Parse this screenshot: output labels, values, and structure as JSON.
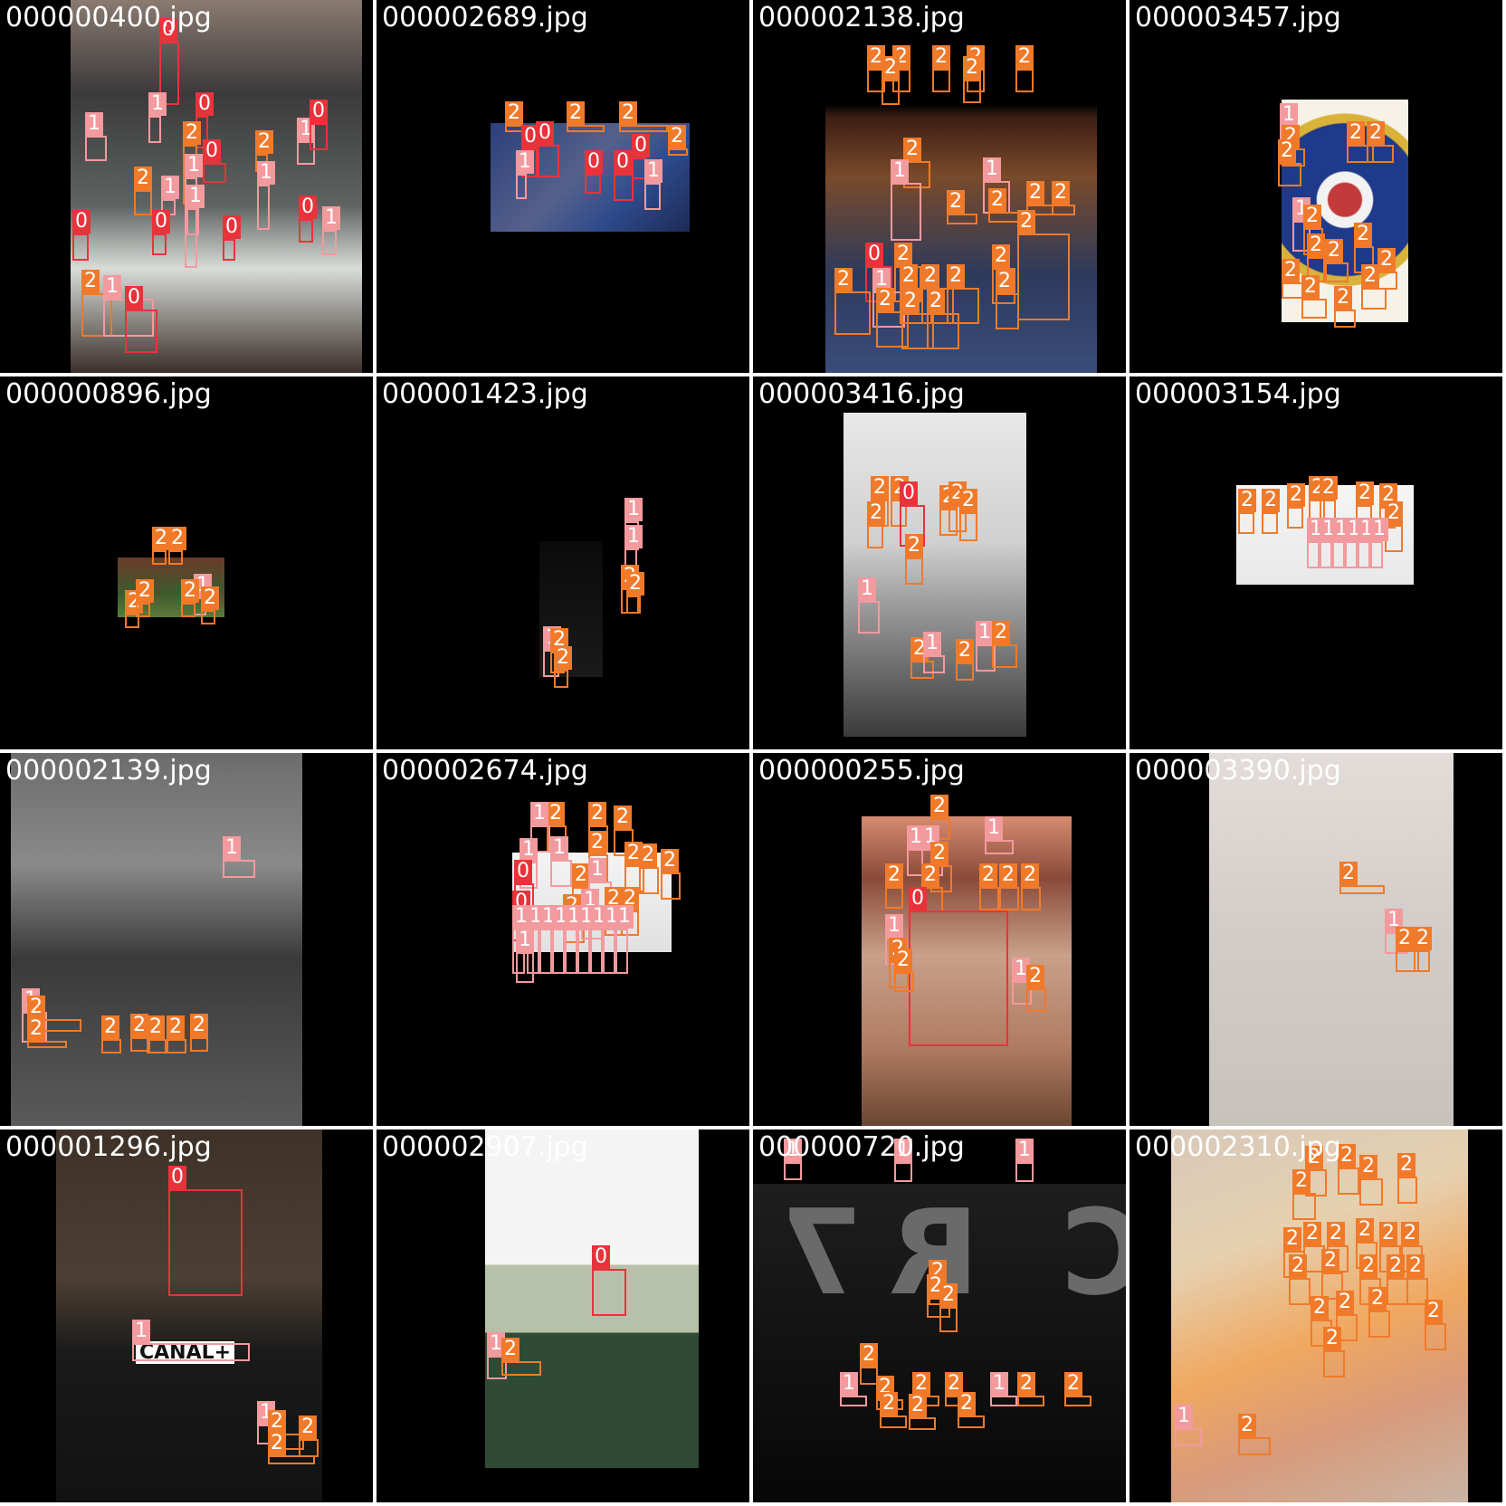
{
  "class_colors": {
    "0": "#e8333b",
    "1": "#f39a9e",
    "2": "#f07a2a"
  },
  "tiles": [
    {
      "filename": "000000400.jpg",
      "label_values": [
        "0",
        "1",
        "1",
        "0",
        "0",
        "2",
        "1",
        "2",
        "1",
        "2",
        "1",
        "1",
        "1",
        "0",
        "0",
        "0",
        "0",
        "0",
        "1",
        "2",
        "1",
        "0"
      ]
    },
    {
      "filename": "000002689.jpg",
      "label_values": [
        "2",
        "2",
        "2",
        "2",
        "0",
        "0",
        "1",
        "0",
        "0",
        "0",
        "1"
      ]
    },
    {
      "filename": "000002138.jpg",
      "label_values": [
        "2",
        "2",
        "2",
        "2",
        "2",
        "2",
        "2",
        "2",
        "1",
        "1",
        "2",
        "2",
        "2",
        "2",
        "2",
        "0",
        "2",
        "2",
        "1",
        "2",
        "2",
        "2",
        "2",
        "2",
        "2",
        "2",
        "2"
      ]
    },
    {
      "filename": "000003457.jpg",
      "label_values": [
        "1",
        "2",
        "2",
        "2",
        "2",
        "1",
        "2",
        "2",
        "2",
        "2",
        "2",
        "2",
        "2",
        "2",
        "2"
      ]
    },
    {
      "filename": "000000896.jpg",
      "label_values": [
        "2",
        "2",
        "2",
        "2",
        "1",
        "2",
        "2"
      ]
    },
    {
      "filename": "000001423.jpg",
      "label_values": [
        "1",
        "1",
        "2",
        "2",
        "1",
        "2",
        "2"
      ]
    },
    {
      "filename": "000003416.jpg",
      "label_values": [
        "2",
        "2",
        "0",
        "2",
        "2",
        "2",
        "2",
        "2",
        "1",
        "2",
        "1",
        "2",
        "1",
        "2"
      ]
    },
    {
      "filename": "000003154.jpg",
      "label_values": [
        "2",
        "2",
        "2",
        "2",
        "2",
        "2",
        "2",
        "2",
        "1",
        "1",
        "1",
        "1",
        "1",
        "1"
      ]
    },
    {
      "filename": "000002139.jpg",
      "label_values": [
        "1",
        "1",
        "2",
        "2",
        "2",
        "2",
        "2",
        "2",
        "2"
      ]
    },
    {
      "filename": "000002674.jpg",
      "label_values": [
        "2",
        "2",
        "2",
        "2",
        "2",
        "1",
        "0",
        "1",
        "2",
        "1",
        "2",
        "2",
        "2",
        "0",
        "2",
        "1",
        "2",
        "2",
        "1",
        "1",
        "1",
        "1",
        "1",
        "1",
        "1",
        "1",
        "1",
        "1",
        "1"
      ]
    },
    {
      "filename": "000000255.jpg",
      "label_values": [
        "2",
        "1",
        "1",
        "1",
        "2",
        "2",
        "2",
        "0",
        "2",
        "2",
        "2",
        "1",
        "2",
        "1",
        "2",
        "2"
      ]
    },
    {
      "filename": "000003390.jpg",
      "label_values": [
        "2",
        "1",
        "2",
        "2"
      ]
    },
    {
      "filename": "000001296.jpg",
      "label_values": [
        "0",
        "1",
        "1",
        "2",
        "2",
        "2"
      ]
    },
    {
      "filename": "000002907.jpg",
      "label_values": [
        "0",
        "1",
        "2"
      ]
    },
    {
      "filename": "000000720.jpg",
      "label_values": [
        "1",
        "1",
        "1",
        "2",
        "2",
        "2",
        "2",
        "1",
        "2",
        "2",
        "2",
        "1",
        "2",
        "2",
        "2",
        "2",
        "2"
      ]
    },
    {
      "filename": "000002310.jpg",
      "label_values": [
        "2",
        "2",
        "2",
        "2",
        "2",
        "2",
        "2",
        "2",
        "2",
        "2",
        "2",
        "2",
        "2",
        "2",
        "2",
        "2",
        "2",
        "2",
        "2",
        "2",
        "2",
        "1",
        "2"
      ]
    }
  ],
  "decor": {
    "canal_logo": "CANAL+",
    "letters": [
      "R",
      "7",
      "C"
    ]
  }
}
